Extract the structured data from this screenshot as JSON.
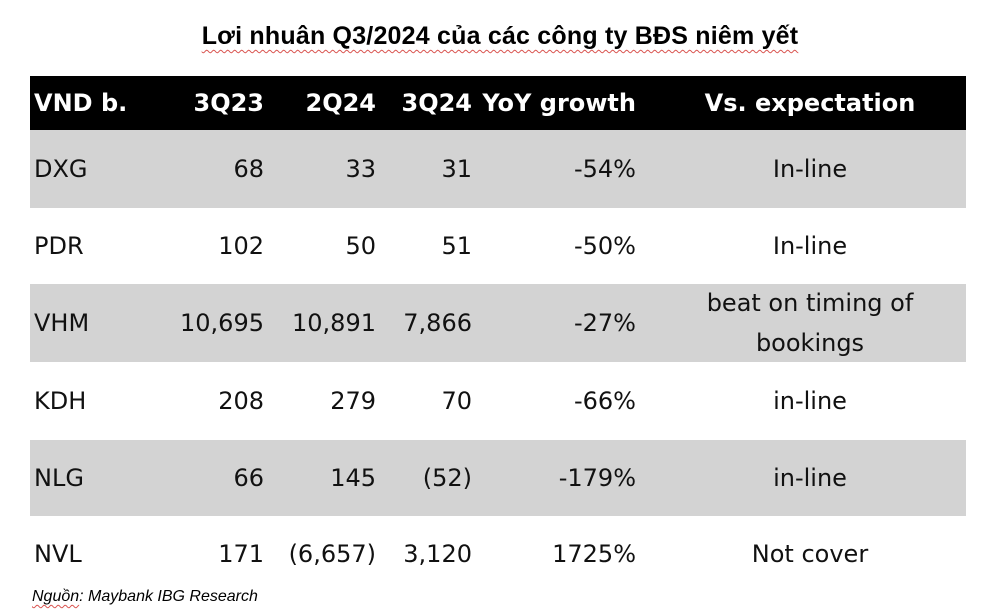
{
  "title": {
    "prefix": "Lơi nhuân Q3/2024 của các công ty BĐS niêm ",
    "last_word": "yết"
  },
  "table": {
    "headers": [
      "VND b.",
      "3Q23",
      "2Q24",
      "3Q24",
      "YoY growth",
      "Vs. expectation"
    ],
    "rows": [
      {
        "name": "DXG",
        "q3_23": "68",
        "q2_24": "33",
        "q3_24": "31",
        "yoy": "-54%",
        "vs": "In-line"
      },
      {
        "name": "PDR",
        "q3_23": "102",
        "q2_24": "50",
        "q3_24": "51",
        "yoy": "-50%",
        "vs": "In-line"
      },
      {
        "name": "VHM",
        "q3_23": "10,695",
        "q2_24": "10,891",
        "q3_24": "7,866",
        "yoy": "-27%",
        "vs": "beat on timing of bookings"
      },
      {
        "name": "KDH",
        "q3_23": "208",
        "q2_24": "279",
        "q3_24": "70",
        "yoy": "-66%",
        "vs": "in-line"
      },
      {
        "name": "NLG",
        "q3_23": "66",
        "q2_24": "145",
        "q3_24": "(52)",
        "yoy": "-179%",
        "vs": "in-line"
      },
      {
        "name": "NVL",
        "q3_23": "171",
        "q2_24": "(6,657)",
        "q3_24": "3,120",
        "yoy": "1725%",
        "vs": "Not cover"
      }
    ]
  },
  "source": {
    "label": "Nguồn",
    "text": ": Maybank IBG Research"
  },
  "colors": {
    "header_bg": "#000000",
    "band_bg": "#d3d3d3",
    "underline": "#d9534f"
  }
}
